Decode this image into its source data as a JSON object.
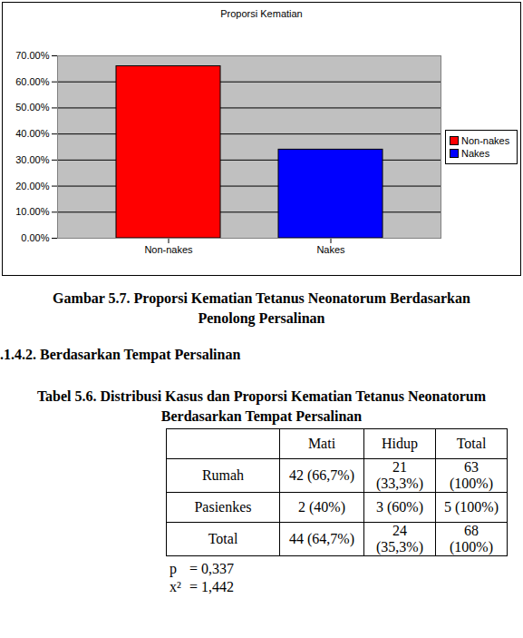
{
  "chart_data": {
    "type": "bar",
    "title": "Proporsi Kematian",
    "categories": [
      "Non-nakes",
      "Nakes"
    ],
    "values": [
      66,
      34
    ],
    "colors": [
      "#ff0000",
      "#0000ff"
    ],
    "ylim": [
      0,
      70
    ],
    "yticks": [
      {
        "value": 0,
        "label": "0.00%"
      },
      {
        "value": 10,
        "label": "10.00%"
      },
      {
        "value": 20,
        "label": "20.00%"
      },
      {
        "value": 30,
        "label": "30.00%"
      },
      {
        "value": 40,
        "label": "40.00%"
      },
      {
        "value": 50,
        "label": "50.00%"
      },
      {
        "value": 60,
        "label": "60.00%"
      },
      {
        "value": 70,
        "label": "70.00%"
      }
    ],
    "grid": true,
    "legend": "right"
  },
  "figure_caption": [
    "Gambar 5.7. Proporsi Kematian Tetanus Neonatorum Berdasarkan",
    "Penolong Persalinan"
  ],
  "heading": ".1.4.2. Berdasarkan Tempat Persalinan",
  "table": {
    "caption": [
      "Tabel 5.6. Distribusi Kasus dan Proporsi Kematian Tetanus Neonatorum",
      "Berdasarkan Tempat Persalinan"
    ],
    "columns": [
      "Mati",
      "Hidup",
      "Total"
    ],
    "rows": [
      [
        "Rumah",
        "42 (66,7%)",
        "21 (33,3%)",
        "63 (100%)"
      ],
      [
        "Pasienkes",
        "2 (40%)",
        "3 (60%)",
        "5 (100%)"
      ],
      [
        "Total",
        "44 (64,7%)",
        "24 (35,3%)",
        "68 (100%)"
      ]
    ]
  },
  "stats": [
    {
      "label": "p",
      "value": "= 0,337"
    },
    {
      "label": "x²",
      "value": "= 1,442"
    }
  ]
}
